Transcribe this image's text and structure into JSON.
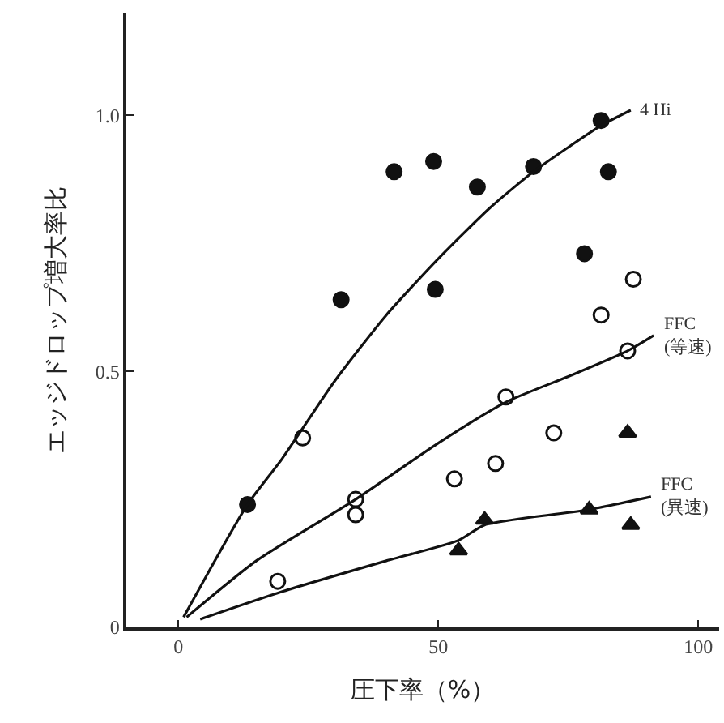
{
  "chart_data": {
    "type": "scatter",
    "xlabel": "圧下率（%）",
    "ylabel": "エッジドロップ増大率比",
    "xlim": [
      -10,
      104
    ],
    "ylim": [
      0,
      1.2
    ],
    "xticks": [
      0,
      50,
      100
    ],
    "yticks": [
      0,
      0.5,
      {
        "value": 1.0,
        "label": "1.0"
      }
    ],
    "legend": false,
    "series": [
      {
        "marker": "circle",
        "color": "#111111",
        "x": [
          13.3,
          31.3,
          41.5,
          49.1,
          49.4,
          57.5,
          68.3,
          78.1,
          81.3,
          82.7
        ],
        "values": [
          0.24,
          0.64,
          0.89,
          0.91,
          0.66,
          0.86,
          0.9,
          0.73,
          0.99,
          0.89
        ]
      },
      {
        "marker": "circle",
        "color": "#ffffff",
        "x": [
          19.1,
          23.9,
          34.1,
          34.1,
          53.1,
          61.0,
          63.0,
          72.2,
          81.3,
          86.4,
          87.5
        ],
        "values": [
          0.09,
          0.37,
          0.25,
          0.22,
          0.29,
          0.32,
          0.45,
          0.38,
          0.61,
          0.54,
          0.68
        ]
      },
      {
        "marker": "triangle",
        "color": "#111111",
        "x": [
          53.9,
          58.9,
          79.0,
          86.4,
          87.0
        ],
        "values": [
          0.15,
          0.21,
          0.23,
          0.38,
          0.2
        ]
      },
      {
        "type": "line",
        "name": "4 Hi",
        "color": "#111111",
        "x": [
          1,
          13.3,
          20,
          30,
          40,
          50,
          60,
          68.3,
          81.3,
          87
        ],
        "values": [
          0.02,
          0.24,
          0.33,
          0.48,
          0.61,
          0.72,
          0.82,
          0.89,
          0.98,
          1.01
        ]
      },
      {
        "type": "line",
        "name": "FFC\n(等速)",
        "color": "#111111",
        "x": [
          1.6,
          15,
          34.1,
          50,
          63,
          75,
          86.4,
          91.4
        ],
        "values": [
          0.02,
          0.13,
          0.25,
          0.36,
          0.44,
          0.49,
          0.54,
          0.57
        ]
      },
      {
        "type": "line",
        "name": "FFC\n(異速)",
        "color": "#111111",
        "x": [
          4.2,
          20,
          40,
          53.9,
          58.9,
          79,
          90.9
        ],
        "values": [
          0.016,
          0.07,
          0.13,
          0.17,
          0.2,
          0.23,
          0.255
        ]
      }
    ]
  }
}
